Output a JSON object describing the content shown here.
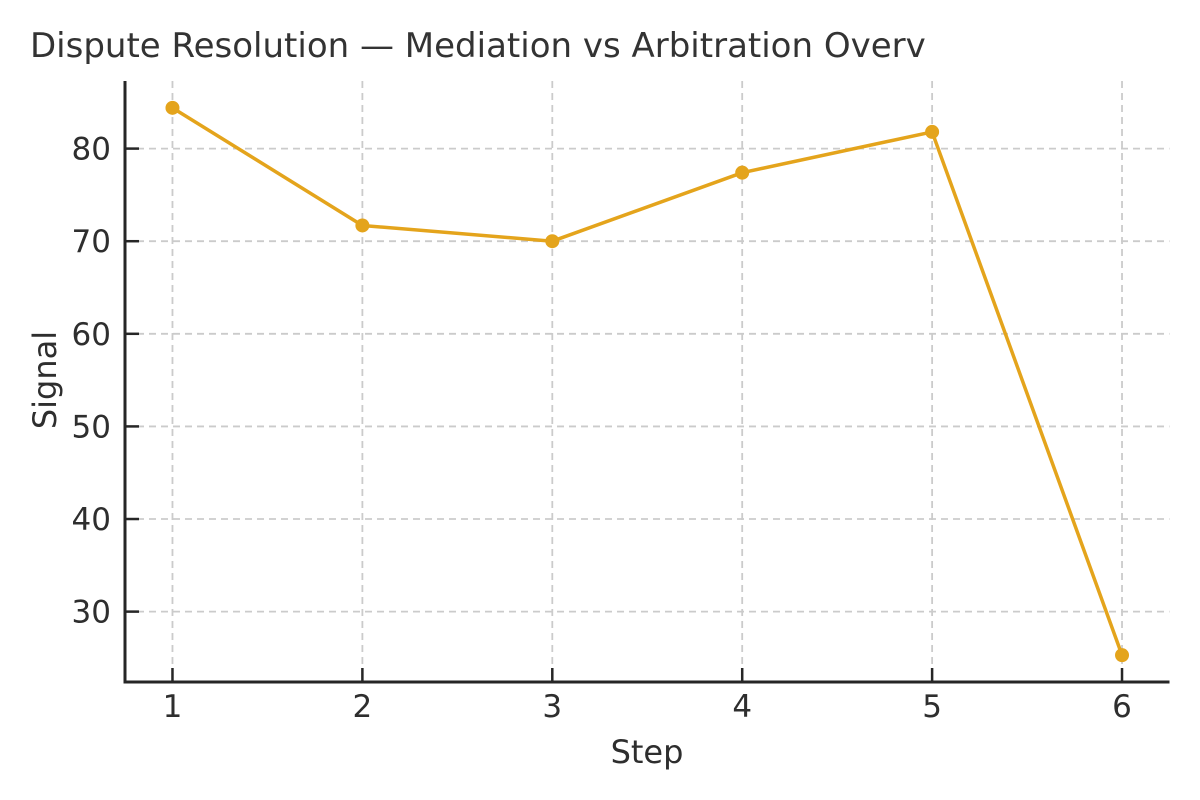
{
  "chart_data": {
    "type": "line",
    "title": "Dispute Resolution — Mediation vs Arbitration Overv",
    "xlabel": "Step",
    "ylabel": "Signal",
    "x": [
      1,
      2,
      3,
      4,
      5,
      6
    ],
    "series": [
      {
        "name": "Signal",
        "values": [
          84.4,
          71.7,
          70.0,
          77.4,
          81.8,
          25.3
        ],
        "color": "#E4A41C",
        "marker": "circle"
      }
    ],
    "x_ticks": [
      "1",
      "2",
      "3",
      "4",
      "5",
      "6"
    ],
    "y_ticks": [
      "30",
      "40",
      "50",
      "60",
      "70",
      "80"
    ],
    "x_tick_values": [
      1,
      2,
      3,
      4,
      5,
      6
    ],
    "y_tick_values": [
      30,
      40,
      50,
      60,
      70,
      80
    ],
    "xlim": [
      0.75,
      6.25
    ],
    "ylim": [
      22.4,
      87.3
    ],
    "grid": true,
    "grid_style": "dashed",
    "legend": "none",
    "colors": {
      "background": "#ffffff",
      "grid": "#cbcbcb",
      "spine": "#262626",
      "tick": "#262626",
      "text": "#2e2e2e",
      "title": "#333333"
    }
  }
}
